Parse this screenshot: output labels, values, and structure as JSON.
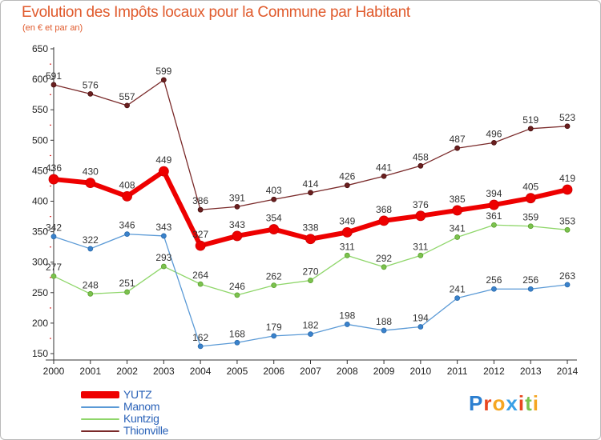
{
  "title": "Evolution des Impôts locaux pour la Commune par Habitant",
  "subtitle": "(en € et par an)",
  "logo": {
    "text": "Proxiti",
    "letter_colors": [
      "#2c7fd0",
      "#e8461f",
      "#f5a623",
      "#3aa0e6",
      "#e8461f",
      "#7cc24e",
      "#f5a623"
    ]
  },
  "chart_data": {
    "type": "line",
    "title": "Evolution des Impôts locaux pour la Commune par Habitant",
    "xlabel": "",
    "ylabel": "(en € et par an)",
    "ylim": [
      150,
      650
    ],
    "yticks": [
      150,
      200,
      250,
      300,
      350,
      400,
      450,
      500,
      550,
      600,
      650
    ],
    "x": [
      "2000",
      "2001",
      "2002",
      "2003",
      "2004",
      "2005",
      "2006",
      "2007",
      "2008",
      "2009",
      "2010",
      "2011",
      "2012",
      "2013",
      "2014"
    ],
    "series": [
      {
        "name": "Thionville",
        "color": "#7a2a2a",
        "values": [
          591,
          576,
          557,
          599,
          386,
          391,
          403,
          414,
          426,
          441,
          458,
          487,
          496,
          519,
          523
        ]
      },
      {
        "name": "Kuntzig",
        "color": "#8fd66a",
        "values": [
          277,
          248,
          251,
          293,
          264,
          246,
          262,
          270,
          311,
          292,
          311,
          341,
          361,
          359,
          353
        ]
      },
      {
        "name": "Manom",
        "color": "#5b9ad6",
        "values": [
          342,
          322,
          346,
          343,
          162,
          168,
          179,
          182,
          198,
          188,
          194,
          241,
          256,
          256,
          263
        ]
      },
      {
        "name": "YUTZ",
        "color": "#ee0000",
        "values": [
          436,
          430,
          408,
          449,
          327,
          343,
          354,
          338,
          349,
          368,
          376,
          385,
          394,
          405,
          419
        ]
      }
    ],
    "legend": [
      "YUTZ",
      "Manom",
      "Kuntzig",
      "Thionville"
    ],
    "legend_position": "bottom-left",
    "grid": false
  }
}
